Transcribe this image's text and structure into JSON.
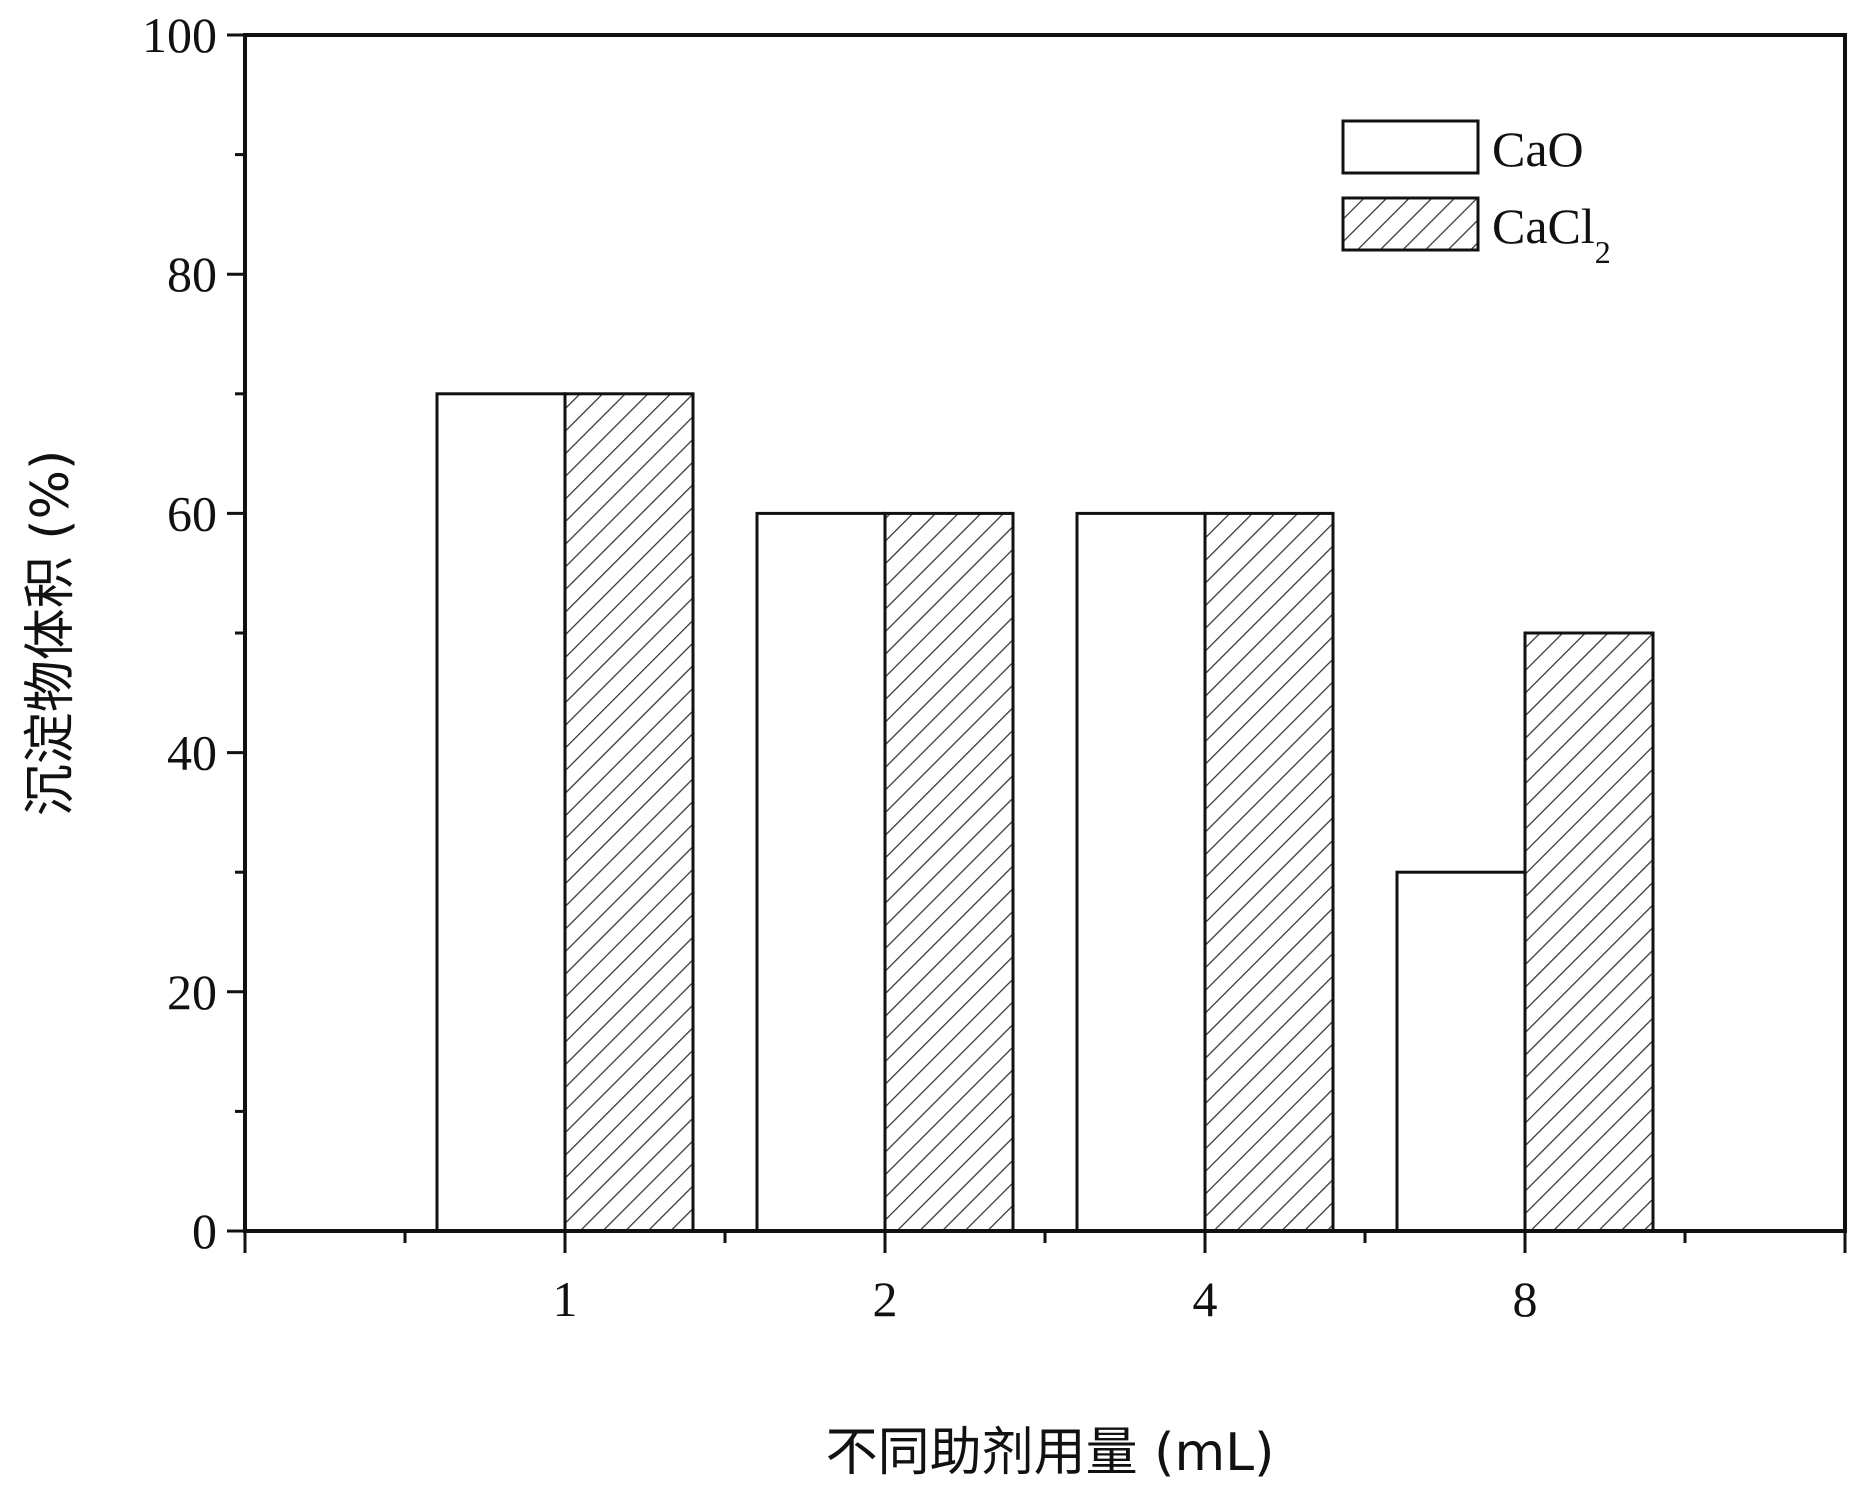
{
  "chart_data": {
    "type": "bar",
    "categories": [
      "1",
      "2",
      "4",
      "8"
    ],
    "series": [
      {
        "name": "CaO",
        "values": [
          70,
          60,
          60,
          30
        ],
        "fill": "#ffffff",
        "pattern": "none"
      },
      {
        "name": "CaCl",
        "name_subscript": "2",
        "values": [
          70,
          60,
          60,
          50
        ],
        "fill": "#ffffff",
        "pattern": "diagonal-hatch"
      }
    ],
    "xlabel": "不同助剂用量 (mL)",
    "ylabel": "沉淀物体积 (%)",
    "ylim": [
      0,
      100
    ],
    "yticks": [
      0,
      20,
      40,
      60,
      80,
      100
    ],
    "grid": false,
    "legend": "top-right",
    "colors": {
      "stroke": "#111111",
      "hatch": "#333333",
      "background": "#ffffff"
    }
  }
}
